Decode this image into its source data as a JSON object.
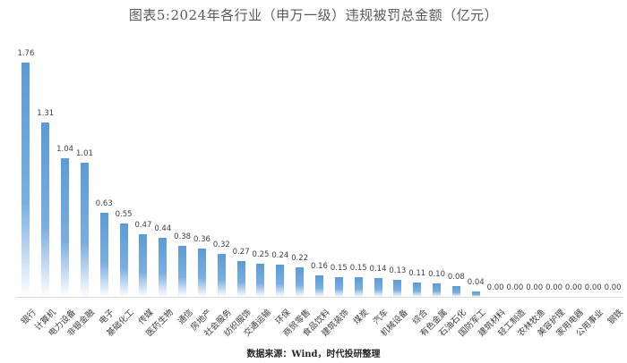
{
  "chart_data": {
    "type": "bar",
    "title": "图表5:2024年各行业（申万一级）违规被罚总金额（亿元）",
    "xlabel": "",
    "ylabel": "",
    "ylim": [
      0,
      1.96
    ],
    "grid": false,
    "legend": null,
    "categories": [
      "银行",
      "计算机",
      "电力设备",
      "非银金融",
      "电子",
      "基础化工",
      "传媒",
      "医药生物",
      "通信",
      "房地产",
      "社会服务",
      "纺织服饰",
      "交通运输",
      "环保",
      "商贸零售",
      "食品饮料",
      "建筑装饰",
      "煤炭",
      "汽车",
      "机械设备",
      "综合",
      "有色金属",
      "石油石化",
      "国防军工",
      "建筑材料",
      "轻工制造",
      "农林牧渔",
      "美容护理",
      "家用电器",
      "公用事业",
      "钢铁"
    ],
    "values": [
      1.76,
      1.31,
      1.04,
      1.01,
      0.63,
      0.55,
      0.47,
      0.44,
      0.38,
      0.36,
      0.32,
      0.27,
      0.25,
      0.24,
      0.22,
      0.16,
      0.15,
      0.15,
      0.14,
      0.13,
      0.11,
      0.1,
      0.08,
      0.04,
      0.0,
      0.0,
      0.0,
      0.0,
      0.0,
      0.0,
      0.0
    ],
    "value_labels": [
      "1.76",
      "1.31",
      "1.04",
      "1.01",
      "0.63",
      "0.55",
      "0.47",
      "0.44",
      "0.38",
      "0.36",
      "0.32",
      "0.27",
      "0.25",
      "0.24",
      "0.22",
      "0.16",
      "0.15",
      "0.15",
      "0.14",
      "0.13",
      "0.11",
      "0.10",
      "0.08",
      "0.04",
      "0.00",
      "0.00",
      "0.00",
      "0.00",
      "0.00",
      "0.00",
      "0.00"
    ],
    "bar_color": "#5b9bd5",
    "source": "数据来源：Wind，时代投研整理"
  }
}
